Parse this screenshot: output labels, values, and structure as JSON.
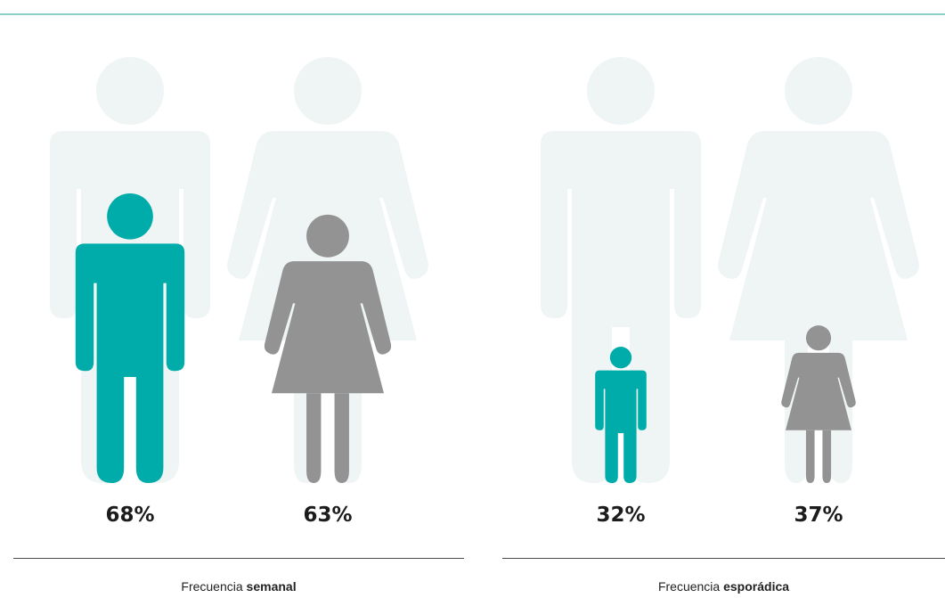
{
  "colors": {
    "accent": "#00ACAA",
    "grey": "#939393",
    "ghost": "#EFF4F4",
    "top_rule": "#8CCFC9"
  },
  "chart_data": [
    {
      "type": "pictograph",
      "caption_prefix": "Frecuencia",
      "caption_bold": "semanal",
      "categories": [
        "man-icon",
        "woman-icon"
      ],
      "values": [
        68,
        63
      ],
      "labels": [
        "68%",
        "63%"
      ],
      "colors": [
        "#00ACAA",
        "#939393"
      ],
      "ylim": [
        0,
        100
      ]
    },
    {
      "type": "pictograph",
      "caption_prefix": "Frecuencia",
      "caption_bold": "esporádica",
      "categories": [
        "man-icon",
        "woman-icon"
      ],
      "values": [
        32,
        37
      ],
      "labels": [
        "32%",
        "37%"
      ],
      "colors": [
        "#00ACAA",
        "#939393"
      ],
      "ylim": [
        0,
        100
      ]
    }
  ]
}
